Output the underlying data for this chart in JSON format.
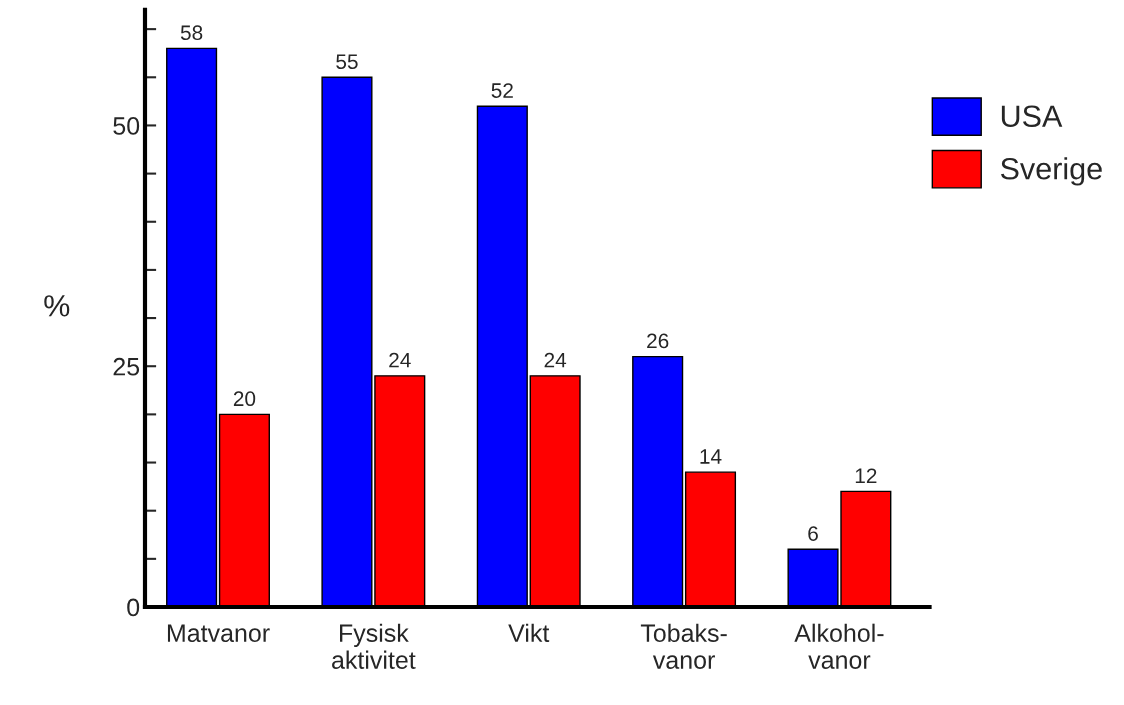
{
  "chart_data": {
    "type": "bar",
    "categories": [
      "Matvanor",
      "Fysisk\naktivitet",
      "Vikt",
      "Tobaks-\nvanor",
      "Alkohol-\nvanor"
    ],
    "series": [
      {
        "name": "USA",
        "color": "#0000ff",
        "values": [
          58,
          55,
          52,
          26,
          6
        ]
      },
      {
        "name": "Sverige",
        "color": "#ff0000",
        "values": [
          20,
          24,
          24,
          14,
          12
        ]
      }
    ],
    "ylabel": "%",
    "ylim": [
      0,
      62
    ],
    "yticks": [
      0,
      {
        "value": 5,
        "label": null
      },
      {
        "value": 10,
        "label": null
      },
      {
        "value": 15,
        "label": null
      },
      {
        "value": 20,
        "label": null
      },
      25,
      {
        "value": 30,
        "label": null
      },
      {
        "value": 35,
        "label": null
      },
      {
        "value": 40,
        "label": null
      },
      {
        "value": 45,
        "label": null
      },
      50,
      {
        "value": 55,
        "label": null
      },
      {
        "value": 60,
        "label": null
      }
    ],
    "data_labels": true,
    "grid": false,
    "legend": "top right"
  }
}
